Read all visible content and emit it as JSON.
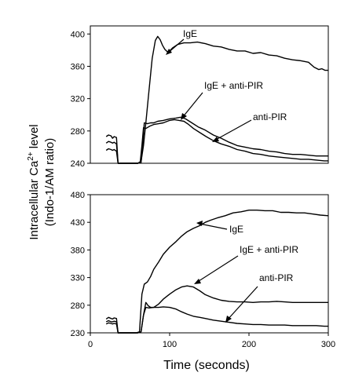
{
  "chart_data": [
    {
      "type": "line",
      "panel": "top",
      "xlabel": "",
      "ylabel": "",
      "xlim": [
        0,
        300
      ],
      "ylim": [
        240,
        410
      ],
      "yticks": [
        "400",
        "360",
        "320",
        "280",
        "240"
      ],
      "xticks": [],
      "grid": false,
      "series": [
        {
          "key": "IgE",
          "points": [
            [
              20,
              273
            ],
            [
              23,
              275
            ],
            [
              26,
              274
            ],
            [
              28,
              271
            ],
            [
              30,
              273
            ],
            [
              33,
              272
            ],
            [
              35,
              240
            ],
            [
              60,
              240
            ],
            [
              64,
              242
            ],
            [
              67,
              262
            ],
            [
              70,
              290
            ],
            [
              74,
              330
            ],
            [
              78,
              370
            ],
            [
              82,
              392
            ],
            [
              85,
              397
            ],
            [
              88,
              393
            ],
            [
              91,
              386
            ],
            [
              94,
              381
            ],
            [
              97,
              378
            ],
            [
              100,
              379
            ],
            [
              104,
              383
            ],
            [
              110,
              387
            ],
            [
              118,
              389
            ],
            [
              126,
              389
            ],
            [
              135,
              390
            ],
            [
              145,
              388
            ],
            [
              155,
              385
            ],
            [
              165,
              384
            ],
            [
              175,
              381
            ],
            [
              185,
              379
            ],
            [
              195,
              379
            ],
            [
              205,
              376
            ],
            [
              215,
              377
            ],
            [
              225,
              374
            ],
            [
              235,
              373
            ],
            [
              245,
              370
            ],
            [
              255,
              368
            ],
            [
              265,
              367
            ],
            [
              275,
              365
            ],
            [
              282,
              359
            ],
            [
              288,
              356
            ],
            [
              292,
              357
            ],
            [
              296,
              355
            ],
            [
              300,
              355
            ]
          ]
        },
        {
          "key": "IgE + anti-PIR",
          "points": [
            [
              20,
              265
            ],
            [
              23,
              267
            ],
            [
              26,
              266
            ],
            [
              28,
              265
            ],
            [
              30,
              266
            ],
            [
              33,
              264
            ],
            [
              35,
              240
            ],
            [
              60,
              240
            ],
            [
              64,
              241
            ],
            [
              66,
              262
            ],
            [
              68,
              290
            ],
            [
              72,
              289
            ],
            [
              76,
              290
            ],
            [
              80,
              290
            ],
            [
              85,
              292
            ],
            [
              92,
              293
            ],
            [
              100,
              295
            ],
            [
              108,
              296
            ],
            [
              114,
              297
            ],
            [
              120,
              295
            ],
            [
              128,
              290
            ],
            [
              136,
              285
            ],
            [
              145,
              281
            ],
            [
              155,
              275
            ],
            [
              165,
              271
            ],
            [
              175,
              266
            ],
            [
              185,
              262
            ],
            [
              195,
              260
            ],
            [
              205,
              258
            ],
            [
              215,
              257
            ],
            [
              225,
              255
            ],
            [
              235,
              254
            ],
            [
              245,
              252
            ],
            [
              255,
              251
            ],
            [
              265,
              251
            ],
            [
              275,
              250
            ],
            [
              285,
              249
            ],
            [
              295,
              249
            ],
            [
              300,
              249
            ]
          ]
        },
        {
          "key": "anti-PIR",
          "points": [
            [
              20,
              256
            ],
            [
              23,
              258
            ],
            [
              26,
              257
            ],
            [
              28,
              256
            ],
            [
              30,
              257
            ],
            [
              33,
              255
            ],
            [
              35,
              240
            ],
            [
              60,
              240
            ],
            [
              63,
              242
            ],
            [
              65,
              262
            ],
            [
              67,
              284
            ],
            [
              70,
              283
            ],
            [
              75,
              286
            ],
            [
              80,
              288
            ],
            [
              86,
              289
            ],
            [
              92,
              290
            ],
            [
              100,
              293
            ],
            [
              106,
              294
            ],
            [
              112,
              293
            ],
            [
              118,
              292
            ],
            [
              124,
              288
            ],
            [
              130,
              283
            ],
            [
              138,
              278
            ],
            [
              146,
              273
            ],
            [
              155,
              268
            ],
            [
              165,
              264
            ],
            [
              175,
              261
            ],
            [
              185,
              257
            ],
            [
              195,
              255
            ],
            [
              205,
              252
            ],
            [
              215,
              251
            ],
            [
              225,
              249
            ],
            [
              235,
              248
            ],
            [
              245,
              247
            ],
            [
              255,
              246
            ],
            [
              265,
              245
            ],
            [
              275,
              245
            ],
            [
              285,
              244
            ],
            [
              295,
              243
            ],
            [
              300,
              243
            ]
          ]
        }
      ],
      "annotations": [
        "IgE",
        "IgE + anti-PIR",
        "anti-PIR"
      ]
    },
    {
      "type": "line",
      "panel": "bottom",
      "xlabel": "Time (seconds)",
      "ylabel": "",
      "xlim": [
        0,
        300
      ],
      "ylim": [
        230,
        480
      ],
      "yticks": [
        "480",
        "430",
        "380",
        "330",
        "280",
        "230"
      ],
      "xticks": [
        "0",
        "100",
        "200",
        "300"
      ],
      "grid": false,
      "series": [
        {
          "key": "IgE",
          "points": [
            [
              20,
              255
            ],
            [
              23,
              258
            ],
            [
              26,
              256
            ],
            [
              28,
              255
            ],
            [
              30,
              257
            ],
            [
              33,
              256
            ],
            [
              35,
              230
            ],
            [
              58,
              230
            ],
            [
              62,
              232
            ],
            [
              65,
              300
            ],
            [
              68,
              318
            ],
            [
              72,
              322
            ],
            [
              76,
              332
            ],
            [
              80,
              345
            ],
            [
              86,
              358
            ],
            [
              92,
              372
            ],
            [
              100,
              385
            ],
            [
              108,
              395
            ],
            [
              115,
              405
            ],
            [
              122,
              413
            ],
            [
              130,
              419
            ],
            [
              138,
              424
            ],
            [
              145,
              430
            ],
            [
              152,
              434
            ],
            [
              160,
              438
            ],
            [
              170,
              442
            ],
            [
              180,
              447
            ],
            [
              190,
              449
            ],
            [
              200,
              452
            ],
            [
              210,
              452
            ],
            [
              220,
              451
            ],
            [
              230,
              451
            ],
            [
              240,
              448
            ],
            [
              250,
              448
            ],
            [
              260,
              447
            ],
            [
              270,
              447
            ],
            [
              280,
              445
            ],
            [
              290,
              443
            ],
            [
              300,
              442
            ]
          ]
        },
        {
          "key": "IgE + anti-PIR",
          "points": [
            [
              20,
              250
            ],
            [
              23,
              252
            ],
            [
              26,
              250
            ],
            [
              28,
              250
            ],
            [
              30,
              251
            ],
            [
              33,
              250
            ],
            [
              35,
              230
            ],
            [
              60,
              230
            ],
            [
              64,
              232
            ],
            [
              67,
              262
            ],
            [
              70,
              285
            ],
            [
              73,
              279
            ],
            [
              76,
              276
            ],
            [
              80,
              276
            ],
            [
              86,
              282
            ],
            [
              92,
              291
            ],
            [
              100,
              300
            ],
            [
              108,
              308
            ],
            [
              115,
              313
            ],
            [
              122,
              315
            ],
            [
              130,
              313
            ],
            [
              138,
              306
            ],
            [
              145,
              299
            ],
            [
              155,
              293
            ],
            [
              165,
              289
            ],
            [
              175,
              287
            ],
            [
              185,
              286
            ],
            [
              195,
              286
            ],
            [
              205,
              285
            ],
            [
              215,
              286
            ],
            [
              225,
              286
            ],
            [
              235,
              287
            ],
            [
              245,
              286
            ],
            [
              255,
              285
            ],
            [
              265,
              285
            ],
            [
              275,
              285
            ],
            [
              285,
              285
            ],
            [
              295,
              285
            ],
            [
              300,
              285
            ]
          ]
        },
        {
          "key": "anti-PIR",
          "points": [
            [
              20,
              246
            ],
            [
              23,
              248
            ],
            [
              26,
              247
            ],
            [
              28,
              246
            ],
            [
              30,
              247
            ],
            [
              33,
              246
            ],
            [
              35,
              230
            ],
            [
              60,
              230
            ],
            [
              64,
              232
            ],
            [
              67,
              262
            ],
            [
              70,
              276
            ],
            [
              74,
              275
            ],
            [
              80,
              276
            ],
            [
              86,
              276
            ],
            [
              92,
              277
            ],
            [
              100,
              276
            ],
            [
              108,
              273
            ],
            [
              115,
              268
            ],
            [
              122,
              264
            ],
            [
              130,
              260
            ],
            [
              138,
              258
            ],
            [
              145,
              256
            ],
            [
              155,
              253
            ],
            [
              165,
              251
            ],
            [
              175,
              249
            ],
            [
              185,
              247
            ],
            [
              195,
              246
            ],
            [
              205,
              245
            ],
            [
              215,
              245
            ],
            [
              225,
              244
            ],
            [
              235,
              244
            ],
            [
              245,
              244
            ],
            [
              255,
              243
            ],
            [
              265,
              243
            ],
            [
              275,
              243
            ],
            [
              285,
              243
            ],
            [
              295,
              242
            ],
            [
              300,
              242
            ]
          ]
        }
      ],
      "annotations": [
        "IgE",
        "IgE + anti-PIR",
        "anti-PIR"
      ]
    }
  ],
  "figure": {
    "ylabel_line1": "Intracellular Ca",
    "ylabel_sup": "2+",
    "ylabel_line1_suffix": " level",
    "ylabel_line2": "(Indo-1/AM ratio)",
    "xlabel": "Time (seconds)"
  },
  "colors": {
    "line": "#000000",
    "axis": "#000000",
    "background": "#ffffff"
  }
}
